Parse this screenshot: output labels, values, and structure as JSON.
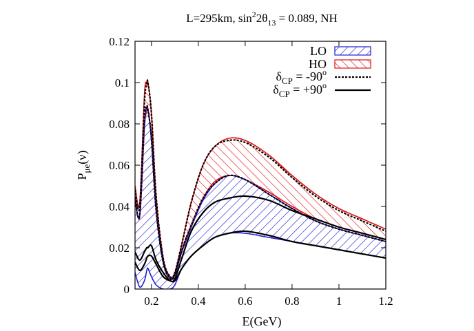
{
  "chart_data": {
    "type": "line",
    "title": "L=295km, sin²2θ₁₃ = 0.089, NH",
    "title_parts": {
      "prefix": "L=295km, sin",
      "sup": "2",
      "mid": "2θ",
      "sub": "13",
      "suffix": " = 0.089, NH"
    },
    "xlabel": "E(GeV)",
    "ylabel_parts": {
      "main": "P",
      "sub": "μe",
      "suffix": "(ν)"
    },
    "xlim": [
      0.13,
      1.2
    ],
    "ylim": [
      0,
      0.12
    ],
    "xticks": [
      "0.2",
      "0.4",
      "0.6",
      "0.8",
      "1",
      "1.2"
    ],
    "xtick_values": [
      0.2,
      0.4,
      0.6,
      0.8,
      1.0,
      1.2
    ],
    "yticks": [
      "0",
      "0.02",
      "0.04",
      "0.06",
      "0.08",
      "0.1",
      "0.12"
    ],
    "ytick_values": [
      0,
      0.02,
      0.04,
      0.06,
      0.08,
      0.1,
      0.12
    ],
    "legend_position": "top-right",
    "legend": [
      {
        "label": "LO",
        "style": "hatch-blue"
      },
      {
        "label": "HO",
        "style": "hatch-red"
      },
      {
        "label_main": "δ",
        "label_sub": "CP",
        "label_rest": " = -90",
        "label_sup": "o",
        "style": "dashed"
      },
      {
        "label_main": "δ",
        "label_sub": "CP",
        "label_rest": " = +90",
        "label_sup": "o",
        "style": "solid"
      }
    ],
    "colors": {
      "lo": "#1f1fd0",
      "ho": "#e01010",
      "line": "#000000"
    },
    "x": [
      0.13,
      0.15,
      0.17,
      0.18,
      0.185,
      0.2,
      0.22,
      0.25,
      0.28,
      0.3,
      0.33,
      0.37,
      0.42,
      0.47,
      0.53,
      0.6,
      0.7,
      0.8,
      0.9,
      1.0,
      1.1,
      1.2
    ],
    "series": [
      {
        "band": "HO",
        "bound": "upper",
        "values": [
          0.05,
          0.042,
          0.094,
          0.1,
          0.1,
          0.085,
          0.045,
          0.015,
          0.006,
          0.008,
          0.022,
          0.042,
          0.06,
          0.069,
          0.073,
          0.072,
          0.065,
          0.055,
          0.046,
          0.039,
          0.034,
          0.029
        ]
      },
      {
        "band": "HO",
        "bound": "lower",
        "values": [
          0.045,
          0.035,
          0.078,
          0.086,
          0.087,
          0.074,
          0.04,
          0.013,
          0.005,
          0.007,
          0.019,
          0.031,
          0.044,
          0.052,
          0.055,
          0.053,
          0.047,
          0.04,
          0.034,
          0.03,
          0.027,
          0.024
        ]
      },
      {
        "band": "LO",
        "bound": "upper",
        "values": [
          0.043,
          0.036,
          0.08,
          0.088,
          0.087,
          0.072,
          0.038,
          0.013,
          0.005,
          0.007,
          0.018,
          0.03,
          0.043,
          0.051,
          0.055,
          0.053,
          0.046,
          0.039,
          0.033,
          0.029,
          0.026,
          0.023
        ]
      },
      {
        "band": "LO",
        "bound": "lower",
        "values": [
          0.008,
          0.001,
          0.004,
          0.009,
          0.01,
          0.006,
          0.002,
          0.0,
          0.0,
          0.002,
          0.01,
          0.016,
          0.021,
          0.025,
          0.027,
          0.027,
          0.025,
          0.023,
          0.021,
          0.019,
          0.017,
          0.015
        ]
      },
      {
        "line": "dcp_-90_HO",
        "values": [
          0.048,
          0.04,
          0.09,
          0.099,
          0.1,
          0.085,
          0.045,
          0.015,
          0.006,
          0.008,
          0.022,
          0.042,
          0.06,
          0.069,
          0.072,
          0.071,
          0.064,
          0.054,
          0.045,
          0.038,
          0.033,
          0.028
        ]
      },
      {
        "line": "dcp_-90_LO",
        "values": [
          0.044,
          0.036,
          0.082,
          0.088,
          0.087,
          0.073,
          0.038,
          0.013,
          0.005,
          0.007,
          0.019,
          0.031,
          0.044,
          0.051,
          0.055,
          0.053,
          0.046,
          0.039,
          0.033,
          0.029,
          0.026,
          0.023
        ]
      },
      {
        "line": "dcp_+90_HO",
        "values": [
          0.018,
          0.014,
          0.018,
          0.02,
          0.02,
          0.021,
          0.014,
          0.008,
          0.004,
          0.005,
          0.015,
          0.028,
          0.037,
          0.042,
          0.044,
          0.045,
          0.043,
          0.038,
          0.034,
          0.03,
          0.027,
          0.024
        ]
      },
      {
        "line": "dcp_+90_LO",
        "values": [
          0.013,
          0.009,
          0.012,
          0.015,
          0.016,
          0.016,
          0.012,
          0.006,
          0.004,
          0.004,
          0.01,
          0.016,
          0.021,
          0.025,
          0.027,
          0.028,
          0.026,
          0.023,
          0.021,
          0.019,
          0.017,
          0.015
        ]
      }
    ]
  }
}
